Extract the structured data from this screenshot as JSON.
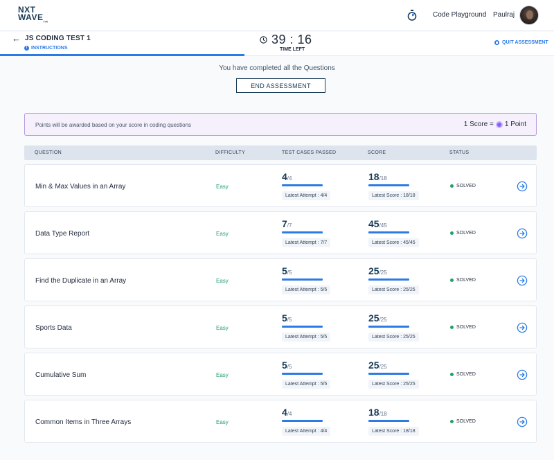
{
  "brand": {
    "logo_line1": "NXT",
    "logo_line2": "WAVE",
    "logo_tm": "TM"
  },
  "topbar": {
    "nav_link": "Code Playground",
    "username": "Paulraj"
  },
  "subheader": {
    "test_title": "JS CODING TEST 1",
    "instructions": "INSTRUCTIONS",
    "timer": "39 : 16",
    "timer_label": "TIME LEFT",
    "quit": "QUIT ASSESSMENT"
  },
  "completion": {
    "message": "You have completed all the Questions",
    "end_button": "END ASSESSMENT"
  },
  "points_banner": {
    "text": "Points will be awarded based on your score in coding questions",
    "left_value": "1 Score =",
    "right_value": "1 Point"
  },
  "table": {
    "headers": {
      "question": "QUESTION",
      "difficulty": "DIFFICULTY",
      "test_cases": "TEST CASES PASSED",
      "score": "SCORE",
      "status": "STATUS"
    },
    "rows": [
      {
        "question": "Min & Max Values in an Array",
        "difficulty": "Easy",
        "tc_passed": "4",
        "tc_total": "/4",
        "tc_progress": 1.0,
        "tc_latest": "Latest Attempt : 4/4",
        "score": "18",
        "score_total": "/18",
        "score_progress": 1.0,
        "score_latest": "Latest Score : 18/18",
        "status": "SOLVED"
      },
      {
        "question": "Data Type Report",
        "difficulty": "Easy",
        "tc_passed": "7",
        "tc_total": "/7",
        "tc_progress": 1.0,
        "tc_latest": "Latest Attempt : 7/7",
        "score": "45",
        "score_total": "/45",
        "score_progress": 1.0,
        "score_latest": "Latest Score : 45/45",
        "status": "SOLVED"
      },
      {
        "question": "Find the Duplicate in an Array",
        "difficulty": "Easy",
        "tc_passed": "5",
        "tc_total": "/5",
        "tc_progress": 1.0,
        "tc_latest": "Latest Attempt : 5/5",
        "score": "25",
        "score_total": "/25",
        "score_progress": 1.0,
        "score_latest": "Latest Score : 25/25",
        "status": "SOLVED"
      },
      {
        "question": "Sports Data",
        "difficulty": "Easy",
        "tc_passed": "5",
        "tc_total": "/5",
        "tc_progress": 1.0,
        "tc_latest": "Latest Attempt : 5/5",
        "score": "25",
        "score_total": "/25",
        "score_progress": 1.0,
        "score_latest": "Latest Score : 25/25",
        "status": "SOLVED"
      },
      {
        "question": "Cumulative Sum",
        "difficulty": "Easy",
        "tc_passed": "5",
        "tc_total": "/5",
        "tc_progress": 1.0,
        "tc_latest": "Latest Attempt : 5/5",
        "score": "25",
        "score_total": "/25",
        "score_progress": 1.0,
        "score_latest": "Latest Score : 25/25",
        "status": "SOLVED"
      },
      {
        "question": "Common Items in Three Arrays",
        "difficulty": "Easy",
        "tc_passed": "4",
        "tc_total": "/4",
        "tc_progress": 1.0,
        "tc_latest": "Latest Attempt : 4/4",
        "score": "18",
        "score_total": "/18",
        "score_progress": 1.0,
        "score_latest": "Latest Score : 18/18",
        "status": "SOLVED"
      }
    ]
  },
  "colors": {
    "accent": "#2c7be5",
    "solved": "#22a06b",
    "brand": "#183b56",
    "banner_border": "#b69ae0"
  },
  "icons": {
    "back": "arrow-left-icon",
    "timer": "stopwatch-icon",
    "clock": "clock-icon",
    "info": "info-icon",
    "quit": "stop-icon",
    "coin": "point-coin-icon",
    "go": "arrow-right-circle-icon"
  }
}
